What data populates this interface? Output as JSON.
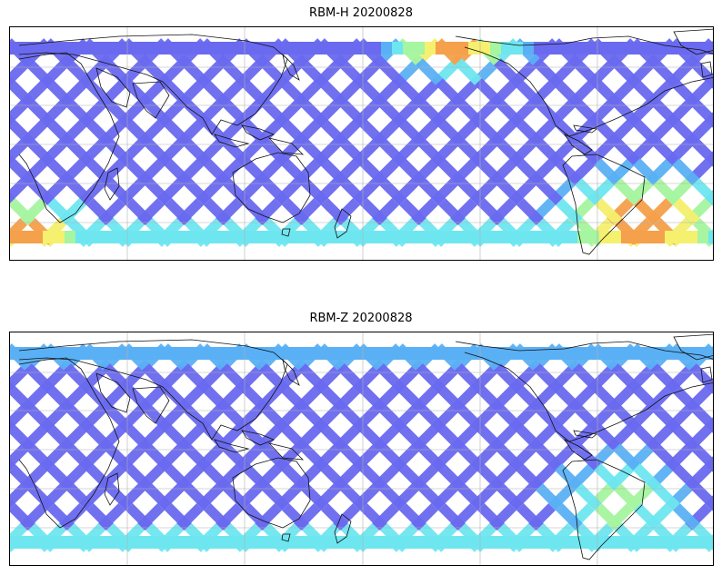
{
  "panels": [
    {
      "title": "RBM-H 20200828",
      "palette": {
        "low": "#6a6af0",
        "mid": "#5ab0f5",
        "cyan": "#6ee6f0",
        "green": "#a6f5a0",
        "yellow": "#f5f06e",
        "orange": "#f5a04a",
        "red": "#f07050"
      },
      "hot_regions": [
        "south-atlantic",
        "north-pacific-east",
        "south-indian-west"
      ]
    },
    {
      "title": "RBM-Z 20200828",
      "palette": {
        "low": "#6a6af0",
        "mid": "#5ab0f5",
        "cyan": "#6ee6f0",
        "green": "#a6f5a0",
        "yellow": "#f5f06e"
      },
      "hot_regions": [
        "south-atlantic-mild"
      ]
    }
  ]
}
